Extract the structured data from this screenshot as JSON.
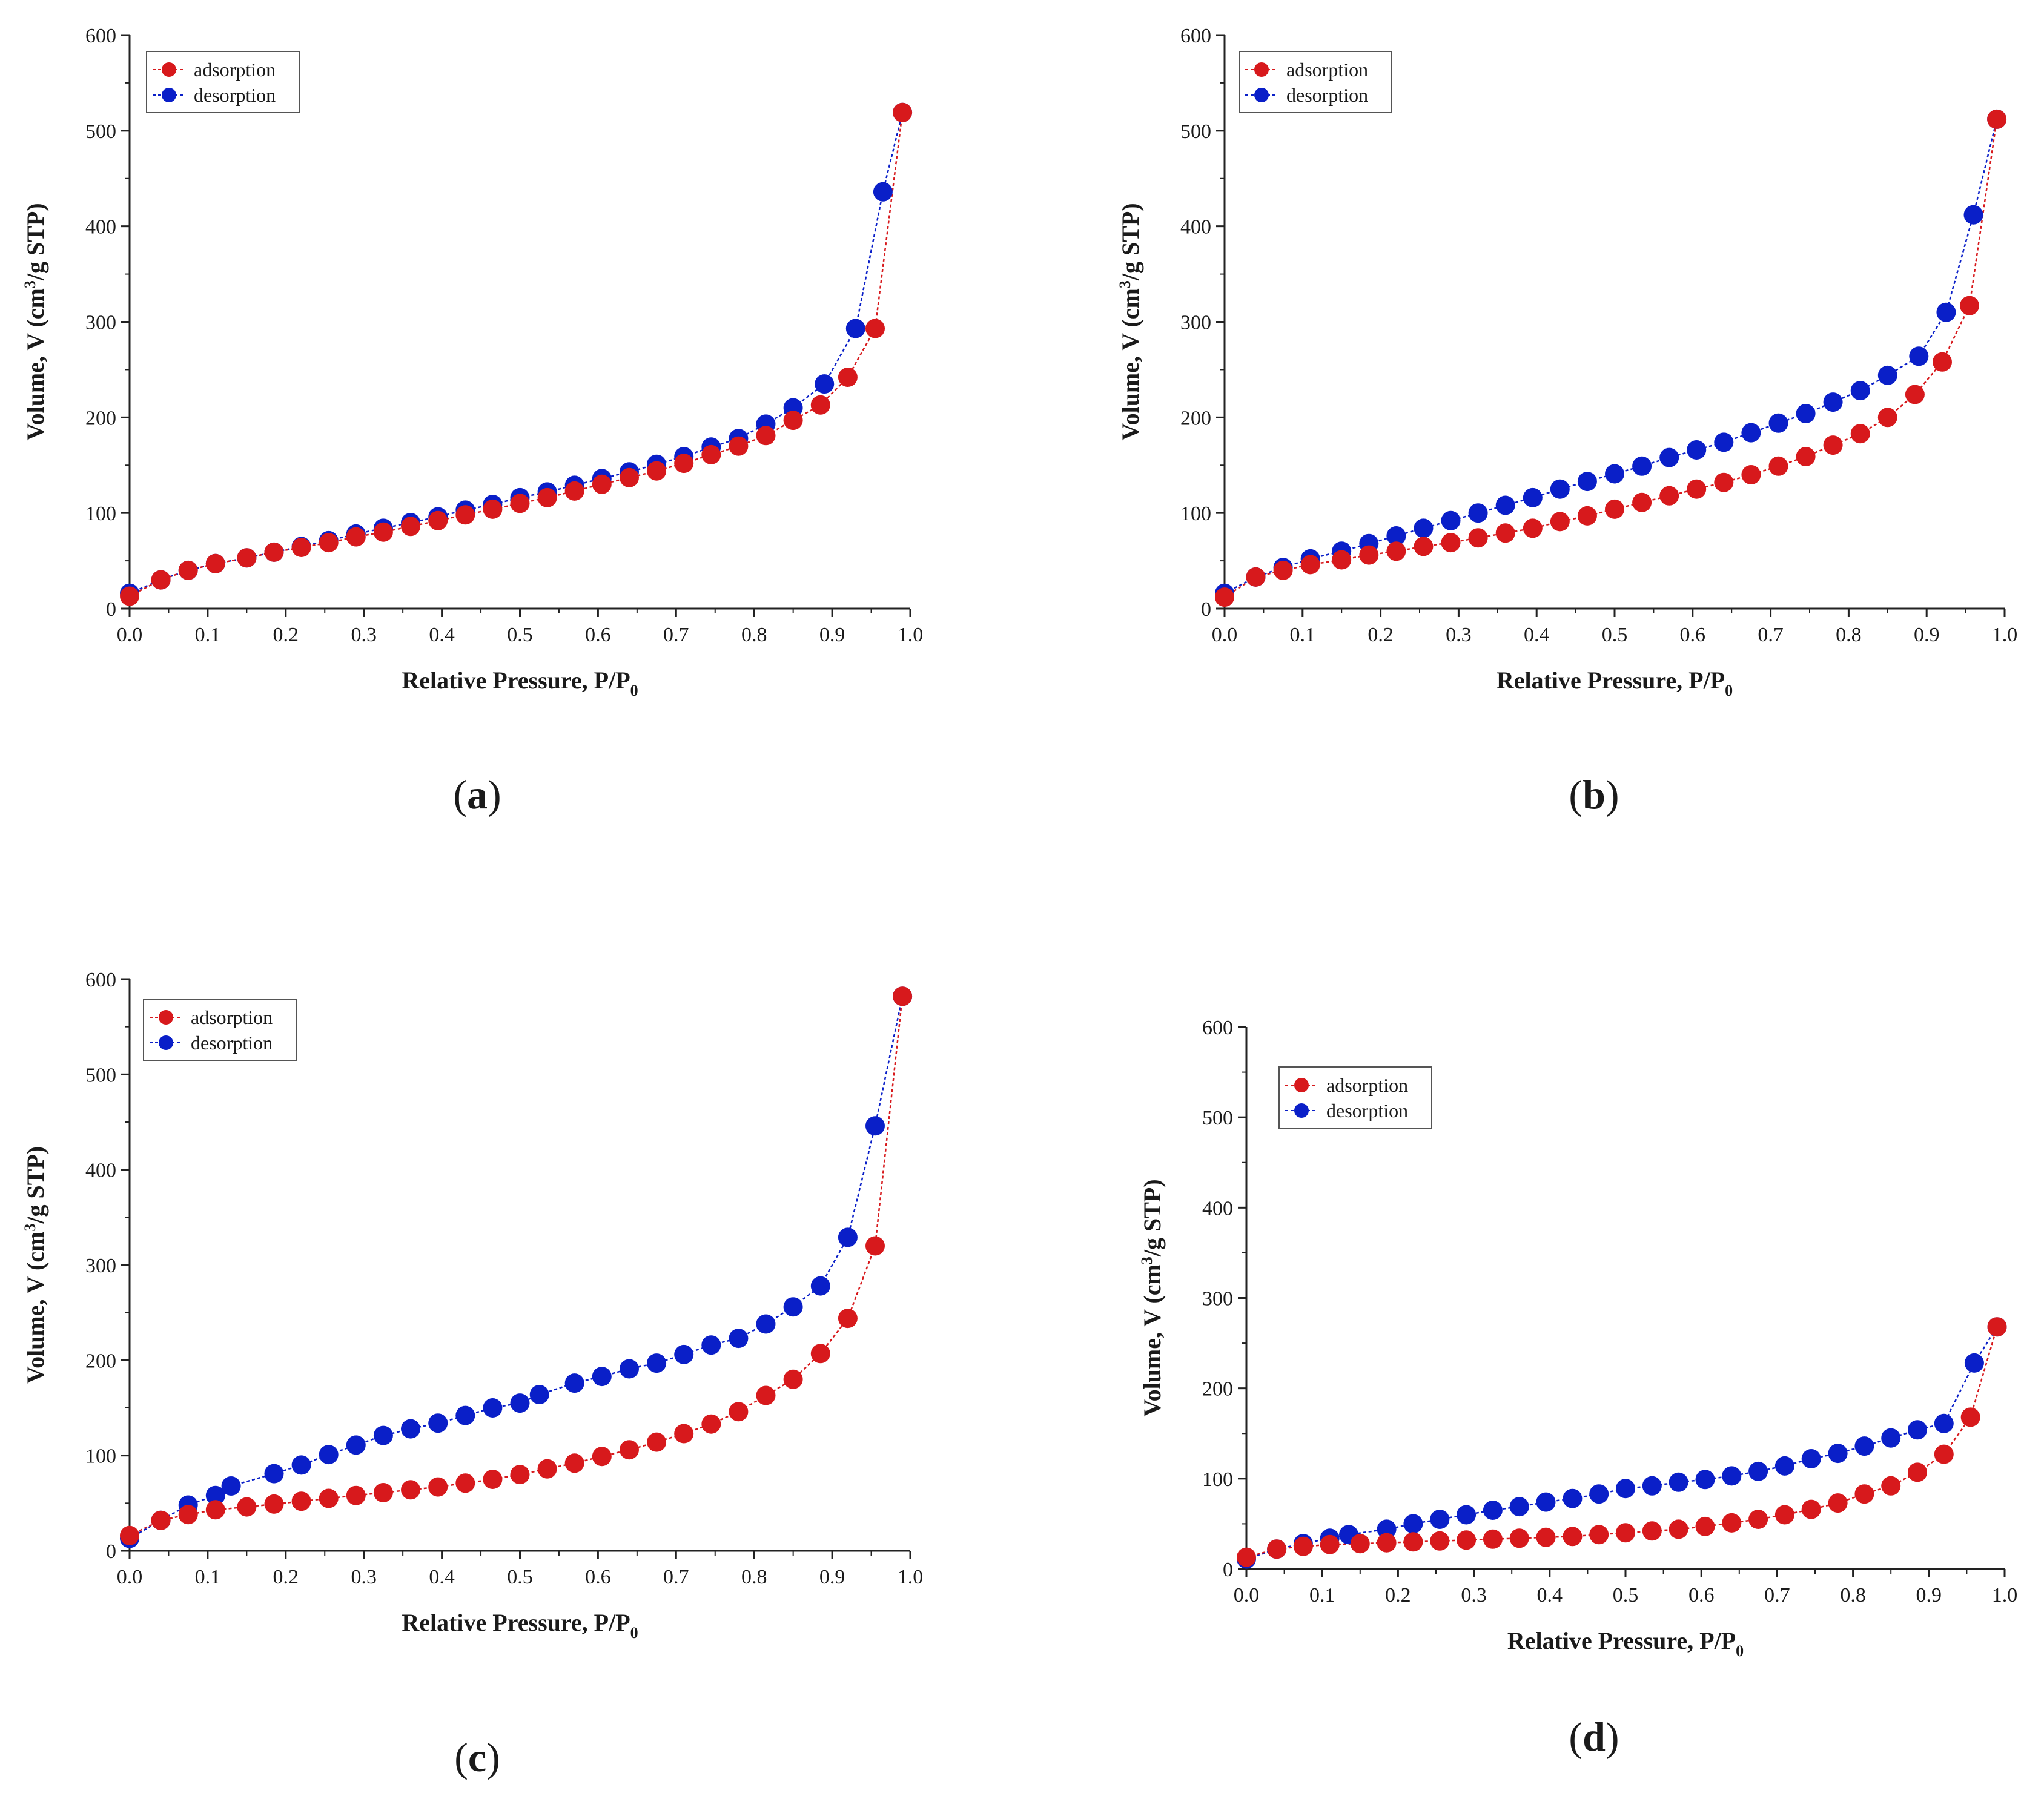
{
  "colors": {
    "adsorption": "#d7191c",
    "desorption": "#0a1fc8",
    "axis": "#222222"
  },
  "chart_data": [
    {
      "type": "scatter",
      "panel": "a",
      "caption": "(a)",
      "caption_open": "(",
      "caption_letter": "a",
      "caption_close": ")",
      "xlabel": "Relative Pressure, P/P",
      "xlabel_sub": "0",
      "ylabel": "Volume, V (cm",
      "ylabel_sup": "3",
      "ylabel_end": "/g STP)",
      "xlim": [
        0,
        1.0
      ],
      "ylim": [
        0,
        600
      ],
      "xticks": [
        "0.0",
        "0.1",
        "0.2",
        "0.3",
        "0.4",
        "0.5",
        "0.6",
        "0.7",
        "0.8",
        "0.9",
        "1.0"
      ],
      "yticks": [
        "0",
        "100",
        "200",
        "300",
        "400",
        "500",
        "600"
      ],
      "legend_position": "top-left",
      "series": [
        {
          "name": "adsorption",
          "x": [
            0.0,
            0.04,
            0.075,
            0.11,
            0.15,
            0.185,
            0.22,
            0.255,
            0.29,
            0.325,
            0.36,
            0.395,
            0.43,
            0.465,
            0.5,
            0.535,
            0.57,
            0.605,
            0.64,
            0.675,
            0.71,
            0.745,
            0.78,
            0.815,
            0.85,
            0.885,
            0.92,
            0.955,
            0.99
          ],
          "y": [
            13,
            30,
            40,
            47,
            53,
            59,
            64,
            69,
            75,
            80,
            86,
            92,
            98,
            104,
            110,
            116,
            123,
            130,
            137,
            144,
            152,
            161,
            170,
            181,
            197,
            213,
            242,
            293,
            519
          ]
        },
        {
          "name": "desorption",
          "x": [
            0.0,
            0.04,
            0.075,
            0.11,
            0.15,
            0.185,
            0.22,
            0.255,
            0.29,
            0.325,
            0.36,
            0.395,
            0.43,
            0.465,
            0.5,
            0.535,
            0.57,
            0.605,
            0.64,
            0.675,
            0.71,
            0.745,
            0.78,
            0.815,
            0.85,
            0.89,
            0.93,
            0.965,
            0.99
          ],
          "y": [
            16,
            30,
            40,
            47,
            53,
            59,
            65,
            71,
            78,
            84,
            90,
            96,
            103,
            109,
            116,
            122,
            129,
            136,
            143,
            151,
            159,
            169,
            178,
            193,
            210,
            235,
            293,
            436,
            519
          ]
        }
      ]
    },
    {
      "type": "scatter",
      "panel": "b",
      "caption": "(b)",
      "caption_open": "(",
      "caption_letter": "b",
      "caption_close": ")",
      "xlabel": "Relative Pressure, P/P",
      "xlabel_sub": "0",
      "ylabel": "Volume, V (cm",
      "ylabel_sup": "3",
      "ylabel_end": "/g STP)",
      "xlim": [
        0,
        1.0
      ],
      "ylim": [
        0,
        600
      ],
      "xticks": [
        "0.0",
        "0.1",
        "0.2",
        "0.3",
        "0.4",
        "0.5",
        "0.6",
        "0.7",
        "0.8",
        "0.9",
        "1.0"
      ],
      "yticks": [
        "0",
        "100",
        "200",
        "300",
        "400",
        "500",
        "600"
      ],
      "legend_position": "top-left",
      "series": [
        {
          "name": "adsorption",
          "x": [
            0.0,
            0.04,
            0.075,
            0.11,
            0.15,
            0.185,
            0.22,
            0.255,
            0.29,
            0.325,
            0.36,
            0.395,
            0.43,
            0.465,
            0.5,
            0.535,
            0.57,
            0.605,
            0.64,
            0.675,
            0.71,
            0.745,
            0.78,
            0.815,
            0.85,
            0.885,
            0.92,
            0.955,
            0.99
          ],
          "y": [
            12,
            33,
            40,
            46,
            51,
            56,
            60,
            65,
            69,
            74,
            79,
            84,
            91,
            97,
            104,
            111,
            118,
            125,
            132,
            140,
            149,
            159,
            171,
            183,
            200,
            224,
            258,
            317,
            512
          ]
        },
        {
          "name": "desorption",
          "x": [
            0.0,
            0.04,
            0.075,
            0.11,
            0.15,
            0.185,
            0.22,
            0.255,
            0.29,
            0.325,
            0.36,
            0.395,
            0.43,
            0.465,
            0.5,
            0.535,
            0.57,
            0.605,
            0.64,
            0.675,
            0.71,
            0.745,
            0.78,
            0.815,
            0.85,
            0.89,
            0.925,
            0.96,
            0.99
          ],
          "y": [
            16,
            33,
            43,
            52,
            60,
            68,
            76,
            84,
            92,
            100,
            108,
            116,
            125,
            133,
            141,
            149,
            158,
            166,
            174,
            184,
            194,
            204,
            216,
            228,
            244,
            264,
            310,
            412,
            512
          ]
        }
      ]
    },
    {
      "type": "scatter",
      "panel": "c",
      "caption": "(c)",
      "caption_open": "(",
      "caption_letter": "c",
      "caption_close": ")",
      "xlabel": "Relative Pressure, P/P",
      "xlabel_sub": "0",
      "ylabel": "Volume, V (cm",
      "ylabel_sup": "3",
      "ylabel_end": "/g STP)",
      "xlim": [
        0,
        1.0
      ],
      "ylim": [
        0,
        600
      ],
      "xticks": [
        "0.0",
        "0.1",
        "0.2",
        "0.3",
        "0.4",
        "0.5",
        "0.6",
        "0.7",
        "0.8",
        "0.9",
        "1.0"
      ],
      "yticks": [
        "0",
        "100",
        "200",
        "300",
        "400",
        "500",
        "600"
      ],
      "legend_position": "top-left",
      "series": [
        {
          "name": "adsorption",
          "x": [
            0.0,
            0.04,
            0.075,
            0.11,
            0.15,
            0.185,
            0.22,
            0.255,
            0.29,
            0.325,
            0.36,
            0.395,
            0.43,
            0.465,
            0.5,
            0.535,
            0.57,
            0.605,
            0.64,
            0.675,
            0.71,
            0.745,
            0.78,
            0.815,
            0.85,
            0.885,
            0.92,
            0.955,
            0.99
          ],
          "y": [
            16,
            32,
            38,
            43,
            46,
            49,
            52,
            55,
            58,
            61,
            64,
            67,
            71,
            75,
            80,
            86,
            92,
            99,
            106,
            114,
            123,
            133,
            146,
            163,
            180,
            207,
            244,
            320,
            582
          ]
        },
        {
          "name": "desorption",
          "x": [
            0.0,
            0.04,
            0.075,
            0.11,
            0.13,
            0.185,
            0.22,
            0.255,
            0.29,
            0.325,
            0.36,
            0.395,
            0.43,
            0.465,
            0.5,
            0.525,
            0.57,
            0.605,
            0.64,
            0.675,
            0.71,
            0.745,
            0.78,
            0.815,
            0.85,
            0.885,
            0.92,
            0.955,
            0.99
          ],
          "y": [
            13,
            32,
            48,
            58,
            68,
            81,
            90,
            101,
            111,
            121,
            128,
            134,
            142,
            150,
            155,
            164,
            176,
            183,
            191,
            197,
            206,
            216,
            223,
            238,
            256,
            278,
            329,
            446,
            582
          ]
        }
      ]
    },
    {
      "type": "scatter",
      "panel": "d",
      "caption": "(d)",
      "caption_open": "(",
      "caption_letter": "d",
      "caption_close": ")",
      "xlabel": "Relative Pressure, P/P",
      "xlabel_sub": "0",
      "ylabel": "Volume, V (cm",
      "ylabel_sup": "3",
      "ylabel_end": "/g STP)",
      "xlim": [
        0,
        1.0
      ],
      "ylim": [
        0,
        600
      ],
      "xticks": [
        "0.0",
        "0.1",
        "0.2",
        "0.3",
        "0.4",
        "0.5",
        "0.6",
        "0.7",
        "0.8",
        "0.9",
        "1.0"
      ],
      "yticks": [
        "0",
        "100",
        "200",
        "300",
        "400",
        "500",
        "600"
      ],
      "legend_position": "top-left",
      "series": [
        {
          "name": "adsorption",
          "x": [
            0.0,
            0.04,
            0.075,
            0.11,
            0.15,
            0.185,
            0.22,
            0.255,
            0.29,
            0.325,
            0.36,
            0.395,
            0.43,
            0.465,
            0.5,
            0.535,
            0.57,
            0.605,
            0.64,
            0.675,
            0.71,
            0.745,
            0.78,
            0.815,
            0.85,
            0.885,
            0.92,
            0.955,
            0.99
          ],
          "y": [
            13,
            22,
            25,
            27,
            28,
            29,
            30,
            31,
            32,
            33,
            34,
            35,
            36,
            38,
            40,
            42,
            44,
            47,
            51,
            55,
            60,
            66,
            73,
            83,
            92,
            107,
            127,
            168,
            268
          ]
        },
        {
          "name": "desorption",
          "x": [
            0.0,
            0.04,
            0.075,
            0.11,
            0.135,
            0.185,
            0.22,
            0.255,
            0.29,
            0.325,
            0.36,
            0.395,
            0.43,
            0.465,
            0.5,
            0.535,
            0.57,
            0.605,
            0.64,
            0.675,
            0.71,
            0.745,
            0.78,
            0.815,
            0.85,
            0.885,
            0.92,
            0.96,
            0.99
          ],
          "y": [
            11,
            22,
            28,
            34,
            38,
            44,
            50,
            55,
            60,
            65,
            69,
            74,
            78,
            83,
            89,
            92,
            96,
            99,
            103,
            108,
            114,
            122,
            128,
            136,
            145,
            154,
            161,
            228,
            268
          ]
        }
      ]
    }
  ]
}
